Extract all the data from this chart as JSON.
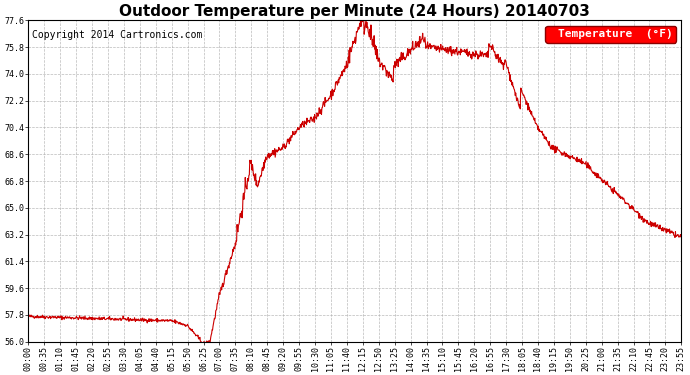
{
  "title": "Outdoor Temperature per Minute (24 Hours) 20140703",
  "copyright_text": "Copyright 2014 Cartronics.com",
  "legend_label": "Temperature  (°F)",
  "line_color": "#cc0000",
  "background_color": "#ffffff",
  "plot_background_color": "#ffffff",
  "grid_color": "#aaaaaa",
  "ylim": [
    56.0,
    77.6
  ],
  "yticks": [
    56.0,
    57.8,
    59.6,
    61.4,
    63.2,
    65.0,
    66.8,
    68.6,
    70.4,
    72.2,
    74.0,
    75.8,
    77.6
  ],
  "xtick_labels": [
    "00:00",
    "00:35",
    "01:10",
    "01:45",
    "02:20",
    "02:55",
    "03:30",
    "04:05",
    "04:40",
    "05:15",
    "05:50",
    "06:25",
    "07:00",
    "07:35",
    "08:10",
    "08:45",
    "09:20",
    "09:55",
    "10:30",
    "11:05",
    "11:40",
    "12:15",
    "12:50",
    "13:25",
    "14:00",
    "14:35",
    "15:10",
    "15:45",
    "16:20",
    "16:55",
    "17:30",
    "18:05",
    "18:40",
    "19:15",
    "19:50",
    "20:25",
    "21:00",
    "21:35",
    "22:10",
    "22:45",
    "23:20",
    "23:55"
  ],
  "title_fontsize": 11,
  "legend_fontsize": 8,
  "copyright_fontsize": 7,
  "tick_fontsize": 6,
  "line_width": 0.8,
  "figwidth": 6.9,
  "figheight": 3.75,
  "dpi": 100
}
